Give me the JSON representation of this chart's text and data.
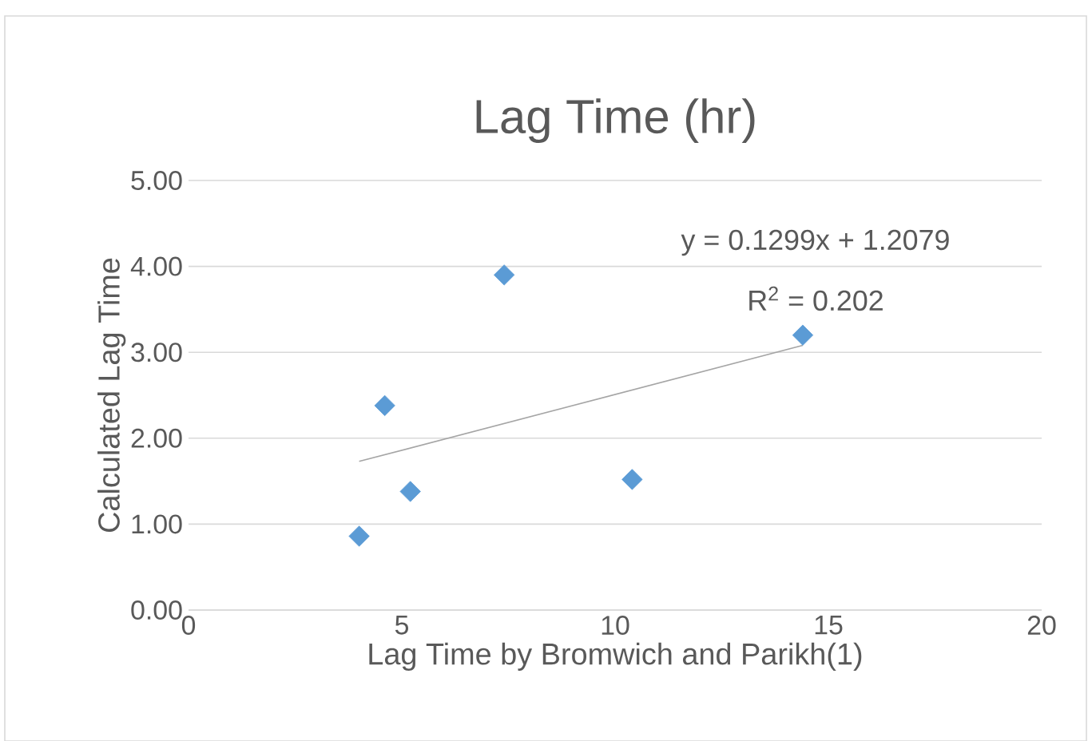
{
  "chart_data": {
    "type": "scatter",
    "title": "Lag Time (hr)",
    "xlabel": "Lag Time by Bromwich and Parikh(1)",
    "ylabel": "Calculated Lag Time",
    "xlim": [
      0,
      20
    ],
    "xticks": [
      0,
      5,
      10,
      15,
      20
    ],
    "ylim": [
      0,
      5
    ],
    "yticks": [
      {
        "value": 0,
        "label": "0.00"
      },
      {
        "value": 1,
        "label": "1.00"
      },
      {
        "value": 2,
        "label": "2.00"
      },
      {
        "value": 3,
        "label": "3.00"
      },
      {
        "value": 4,
        "label": "4.00"
      },
      {
        "value": 5,
        "label": "5.00"
      }
    ],
    "grid": "y",
    "series": [
      {
        "marker": "diamond",
        "color": "#5b9bd5",
        "x": [
          4.0,
          4.6,
          5.2,
          7.4,
          10.4,
          14.4
        ],
        "values": [
          0.86,
          2.38,
          1.38,
          3.9,
          1.52,
          3.2
        ]
      },
      {
        "type": "line",
        "marker": "none",
        "color": "#a5a5a5",
        "x": [
          4.0,
          14.4
        ],
        "values": [
          1.73,
          3.08
        ]
      }
    ],
    "annotations": [
      "y = 0.1299x + 1.2079",
      "R$^{2}$ = 0.202"
    ]
  }
}
